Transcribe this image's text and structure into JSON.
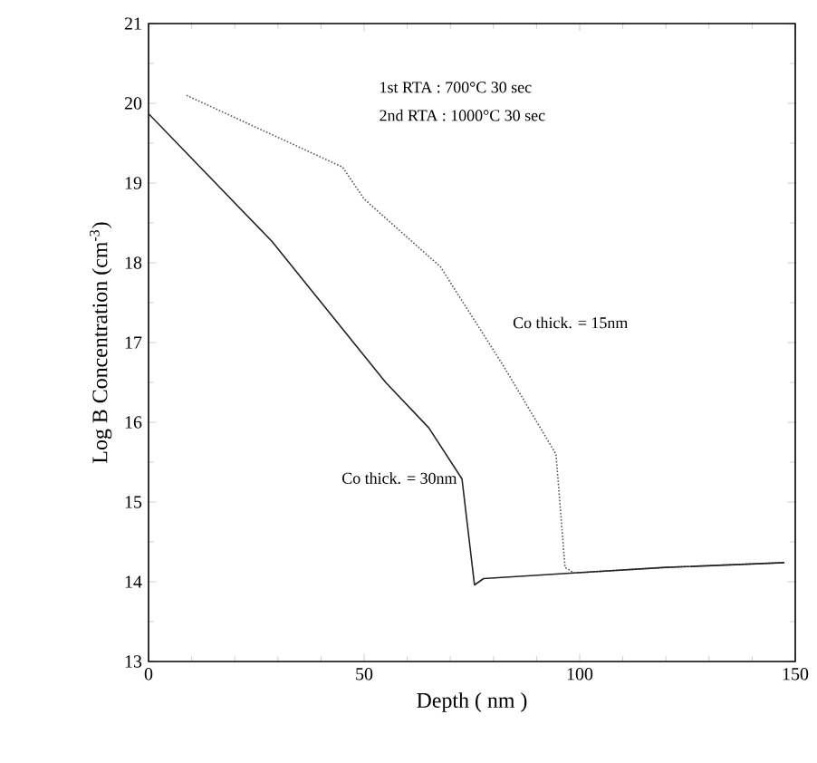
{
  "chart_data": {
    "type": "line",
    "xlabel": "Depth ( nm )",
    "ylabel": "Log B Concentration (cm$^{-3}$)",
    "xlim": [
      0,
      150
    ],
    "xticks": [
      0,
      50,
      100,
      150
    ],
    "ylim": [
      13,
      21
    ],
    "yticks": [
      13,
      14,
      15,
      16,
      17,
      18,
      19,
      20,
      21
    ],
    "grid": false,
    "legend": false,
    "marker": "none",
    "annotations": [
      "1st RTA : 700°C 30 sec",
      "2nd RTA : 1000°C 30 sec"
    ],
    "series": [
      {
        "name": "Co thick. = 15nm",
        "color": "#555555",
        "line_style": "dotted",
        "x": [
          8.8,
          45,
          50,
          67.7,
          82.4,
          94.5,
          96.6,
          98.7,
          120,
          147.5
        ],
        "values": [
          20.1,
          19.2,
          18.8,
          17.95,
          16.7,
          15.6,
          14.18,
          14.11,
          14.18,
          14.24
        ]
      },
      {
        "name": "Co thick. = 30nm",
        "color": "#222222",
        "line_style": "solid",
        "x": [
          0,
          28.6,
          55,
          65,
          72.7,
          75.6,
          77.7,
          98.7,
          120,
          147.5
        ],
        "values": [
          19.87,
          18.27,
          16.5,
          15.93,
          15.29,
          13.96,
          14.04,
          14.11,
          14.18,
          14.24
        ]
      }
    ]
  }
}
